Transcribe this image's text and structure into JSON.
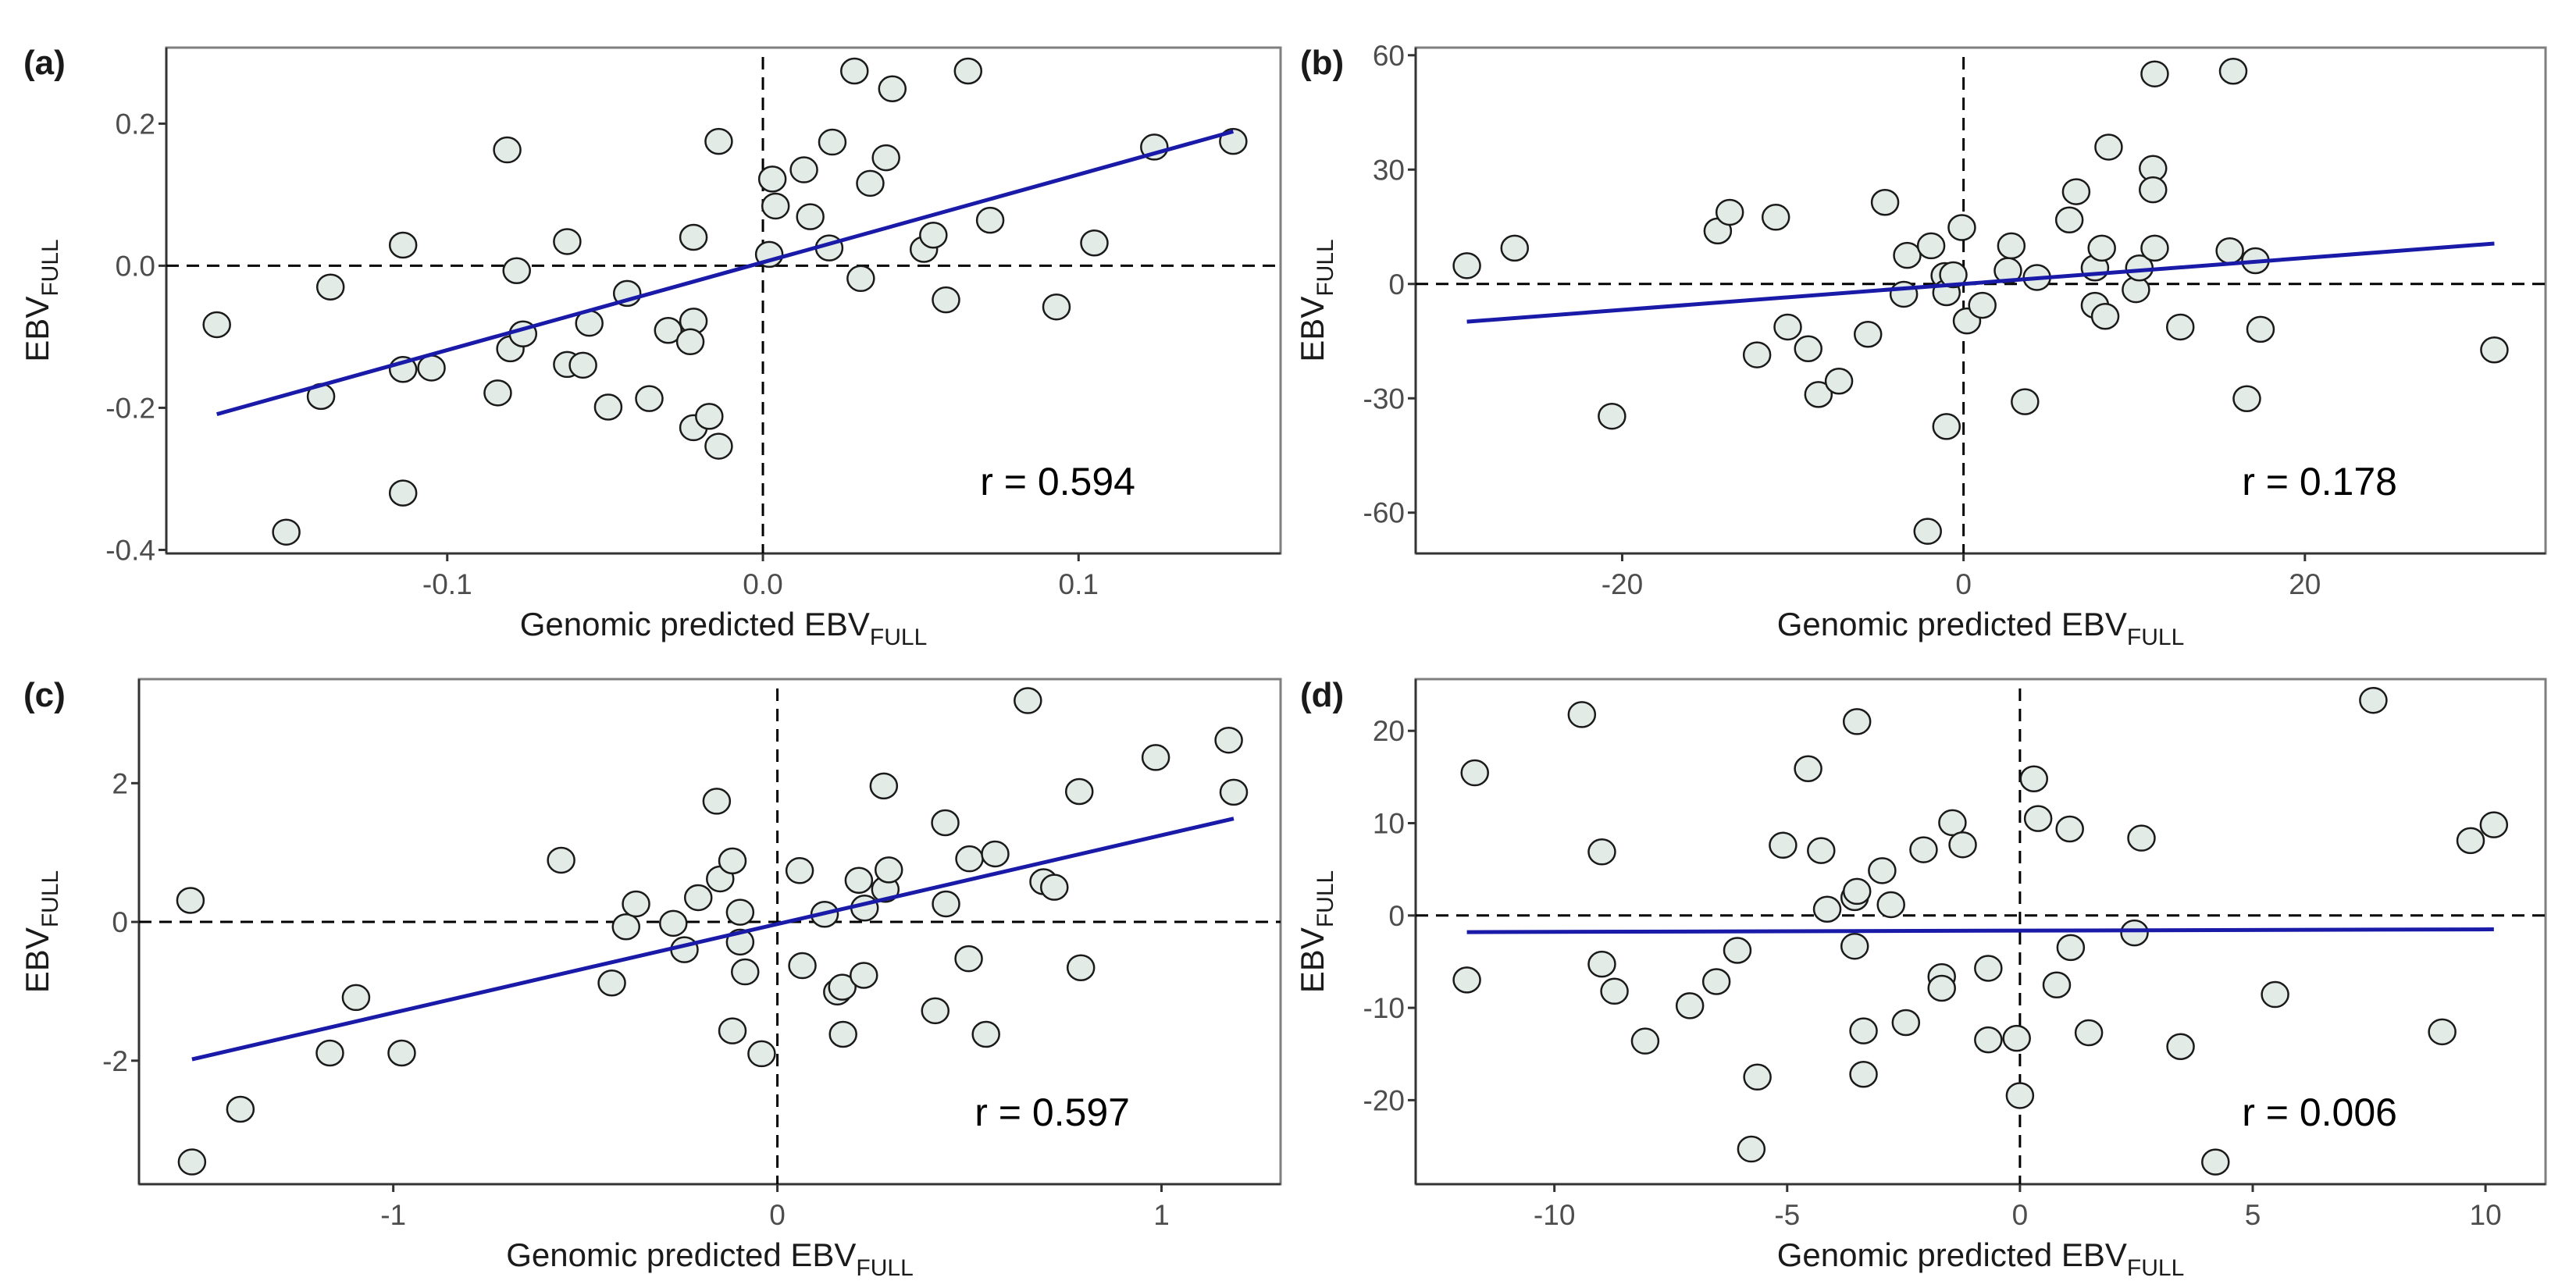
{
  "chart_data": [
    {
      "type": "scatter",
      "panel_label": "(a)",
      "xlabel": "Genomic predicted EBV",
      "xlabel_sub": "FULL",
      "ylabel": "EBV",
      "ylabel_sub": "FULL",
      "xlim": [
        -0.189,
        0.164
      ],
      "ylim": [
        -0.405,
        0.307
      ],
      "xticks": [
        -0.1,
        0.0,
        0.1
      ],
      "xtick_labels": [
        "-0.1",
        "0.0",
        "0.1"
      ],
      "yticks": [
        -0.4,
        -0.2,
        0.0,
        0.2
      ],
      "ytick_labels": [
        "-0.4",
        "-0.2",
        "0.0",
        "0.2"
      ],
      "annotation": "r = 0.594",
      "regression": {
        "x": [
          -0.173,
          0.149
        ],
        "y": [
          -0.209,
          0.189
        ]
      },
      "x": [
        -0.173,
        -0.151,
        -0.14,
        -0.137,
        -0.114,
        -0.114,
        -0.114,
        -0.105,
        -0.084,
        -0.081,
        -0.078,
        -0.08,
        -0.076,
        -0.062,
        -0.062,
        -0.057,
        -0.055,
        -0.049,
        -0.043,
        -0.036,
        -0.03,
        -0.022,
        -0.022,
        -0.023,
        -0.022,
        -0.017,
        -0.014,
        -0.014,
        0.002,
        0.003,
        0.004,
        0.013,
        0.015,
        0.021,
        0.022,
        0.029,
        0.031,
        0.034,
        0.039,
        0.041,
        0.051,
        0.054,
        0.058,
        0.065,
        0.072,
        0.093,
        0.105,
        0.124,
        0.149
      ],
      "y": [
        -0.083,
        -0.375,
        -0.184,
        -0.03,
        0.029,
        -0.146,
        -0.32,
        -0.144,
        -0.179,
        0.163,
        -0.007,
        -0.117,
        -0.096,
        0.034,
        -0.139,
        -0.14,
        -0.081,
        -0.199,
        -0.039,
        -0.187,
        -0.091,
        0.04,
        -0.078,
        -0.107,
        -0.228,
        -0.212,
        -0.254,
        0.175,
        0.016,
        0.122,
        0.084,
        0.135,
        0.069,
        0.025,
        0.174,
        0.274,
        -0.018,
        0.116,
        0.152,
        0.249,
        0.023,
        0.043,
        -0.048,
        0.274,
        0.064,
        -0.058,
        0.032,
        0.167,
        0.175
      ]
    },
    {
      "type": "scatter",
      "panel_label": "(b)",
      "xlabel": "Genomic predicted EBV",
      "xlabel_sub": "FULL",
      "ylabel": "EBV",
      "ylabel_sub": "FULL",
      "xlim": [
        -32.1,
        34.1
      ],
      "ylim": [
        -70.7,
        62
      ],
      "xticks": [
        -20,
        0,
        20
      ],
      "xtick_labels": [
        "-20",
        "0",
        "20"
      ],
      "yticks": [
        -60,
        -30,
        0,
        30,
        60
      ],
      "ytick_labels": [
        "-60",
        "-30",
        "0",
        "30",
        "60"
      ],
      "annotation": "r = 0.178",
      "regression": {
        "x": [
          -29.1,
          31.1
        ],
        "y": [
          -9.9,
          10.6
        ]
      },
      "x": [
        -29.1,
        -26.3,
        -20.6,
        -14.4,
        -13.7,
        -12.1,
        -11.0,
        -10.3,
        -9.1,
        -8.5,
        -7.3,
        -5.6,
        -4.6,
        -3.5,
        -3.3,
        -1.9,
        -1.1,
        -1.0,
        -1.0,
        -2.1,
        -0.6,
        -0.1,
        0.2,
        1.1,
        2.6,
        2.8,
        3.6,
        4.3,
        6.2,
        6.6,
        7.7,
        7.7,
        8.1,
        8.3,
        8.5,
        10.1,
        10.3,
        11.1,
        11.1,
        11.2,
        11.2,
        12.7,
        15.6,
        15.8,
        16.6,
        17.1,
        17.4,
        31.1
      ],
      "y": [
        4.8,
        9.4,
        -34.7,
        13.9,
        18.8,
        -18.6,
        17.5,
        -11.3,
        -17.0,
        -29.0,
        -25.5,
        -13.2,
        21.4,
        -2.7,
        7.5,
        10.0,
        2.2,
        -2.3,
        -37.4,
        -64.9,
        2.4,
        14.8,
        -9.7,
        -5.6,
        3.5,
        10.0,
        -30.9,
        1.7,
        16.8,
        24.2,
        -5.6,
        4.2,
        9.4,
        -8.5,
        35.9,
        -1.5,
        4.2,
        30.3,
        24.7,
        9.4,
        55.1,
        -11.3,
        8.7,
        55.8,
        -30.1,
        6.1,
        -11.9,
        -17.3
      ]
    },
    {
      "type": "scatter",
      "panel_label": "(c)",
      "xlabel": "Genomic predicted EBV",
      "xlabel_sub": "FULL",
      "ylabel": "EBV",
      "ylabel_sub": "FULL",
      "xlim": [
        -1.662,
        1.31
      ],
      "ylim": [
        -3.78,
        3.5
      ],
      "xticks": [
        -1,
        0,
        1
      ],
      "xtick_labels": [
        "-1",
        "0",
        "1"
      ],
      "yticks": [
        -2,
        0,
        2
      ],
      "ytick_labels": [
        "-2",
        "0",
        "2"
      ],
      "annotation": "r = 0.597",
      "regression": {
        "x": [
          -1.524,
          1.188
        ],
        "y": [
          -1.98,
          1.49
        ]
      },
      "x": [
        -1.528,
        -1.524,
        -1.398,
        -1.165,
        -1.097,
        -0.978,
        -0.563,
        -0.431,
        -0.394,
        -0.368,
        -0.271,
        -0.242,
        -0.206,
        -0.158,
        -0.149,
        -0.117,
        -0.117,
        -0.097,
        -0.097,
        -0.084,
        -0.041,
        0.058,
        0.065,
        0.123,
        0.156,
        0.171,
        0.169,
        0.212,
        0.225,
        0.227,
        0.277,
        0.281,
        0.29,
        0.411,
        0.437,
        0.439,
        0.498,
        0.5,
        0.543,
        0.567,
        0.652,
        0.693,
        0.721,
        0.786,
        0.79,
        0.985,
        1.175,
        1.188
      ],
      "y": [
        0.31,
        -3.46,
        -2.7,
        -1.89,
        -1.09,
        -1.89,
        0.89,
        -0.88,
        -0.07,
        0.26,
        -0.02,
        -0.4,
        0.35,
        1.74,
        0.62,
        0.88,
        -1.57,
        0.14,
        -0.29,
        -0.72,
        -1.9,
        0.74,
        -0.63,
        0.11,
        -1.01,
        -1.62,
        -0.94,
        0.6,
        -0.77,
        0.2,
        1.96,
        0.47,
        0.75,
        -1.28,
        1.43,
        0.26,
        -0.53,
        0.91,
        -1.62,
        0.98,
        3.19,
        0.58,
        0.5,
        1.88,
        -0.66,
        2.37,
        2.62,
        1.87
      ]
    },
    {
      "type": "scatter",
      "panel_label": "(d)",
      "xlabel": "Genomic predicted EBV",
      "xlabel_sub": "FULL",
      "ylabel": "EBV",
      "ylabel_sub": "FULL",
      "xlim": [
        -12.98,
        11.29
      ],
      "ylim": [
        -29.1,
        25.6
      ],
      "xticks": [
        -10,
        -5,
        0,
        5,
        10
      ],
      "xtick_labels": [
        "-10",
        "-5",
        "0",
        "5",
        "10"
      ],
      "yticks": [
        -20,
        -10,
        0,
        10,
        20
      ],
      "ytick_labels": [
        "-20",
        "-10",
        "0",
        "10",
        "20"
      ],
      "annotation": "r = 0.006",
      "regression": {
        "x": [
          -11.88,
          10.18
        ],
        "y": [
          -1.8,
          -1.5
        ]
      },
      "x": [
        -11.88,
        -11.71,
        -9.41,
        -8.98,
        -8.98,
        -8.71,
        -8.05,
        -7.09,
        -6.52,
        -6.07,
        -5.77,
        -5.64,
        -5.09,
        -4.55,
        -4.27,
        -4.14,
        -3.55,
        -3.5,
        -3.55,
        -3.5,
        -3.36,
        -3.36,
        -2.96,
        -2.77,
        -2.45,
        -2.07,
        -1.68,
        -1.68,
        -1.45,
        -1.23,
        -0.68,
        -0.68,
        -0.07,
        0.0,
        0.3,
        0.39,
        0.79,
        1.07,
        1.09,
        1.48,
        2.46,
        2.61,
        3.45,
        4.2,
        5.48,
        7.59,
        9.07,
        9.68,
        10.18
      ],
      "y": [
        -6.98,
        15.45,
        21.76,
        6.89,
        -5.27,
        -8.2,
        -13.6,
        -9.77,
        -7.16,
        -3.78,
        -25.3,
        -17.5,
        7.61,
        15.9,
        7.03,
        0.68,
        1.94,
        2.61,
        -3.33,
        21.0,
        -12.5,
        -17.2,
        4.86,
        1.17,
        -11.6,
        7.12,
        -6.62,
        -7.88,
        10.05,
        7.66,
        -5.72,
        -13.47,
        -13.3,
        -19.5,
        14.8,
        10.5,
        -7.52,
        9.37,
        -3.47,
        -12.7,
        -1.89,
        8.38,
        -14.2,
        -26.7,
        -8.56,
        23.3,
        -12.6,
        8.11,
        9.82
      ]
    }
  ],
  "colors": {
    "point_fill": "#e3ebe7",
    "point_stroke": "#1a1a1a",
    "regression": "#1a1aa8",
    "refline": "#000000",
    "border": "#7f7f7f"
  }
}
